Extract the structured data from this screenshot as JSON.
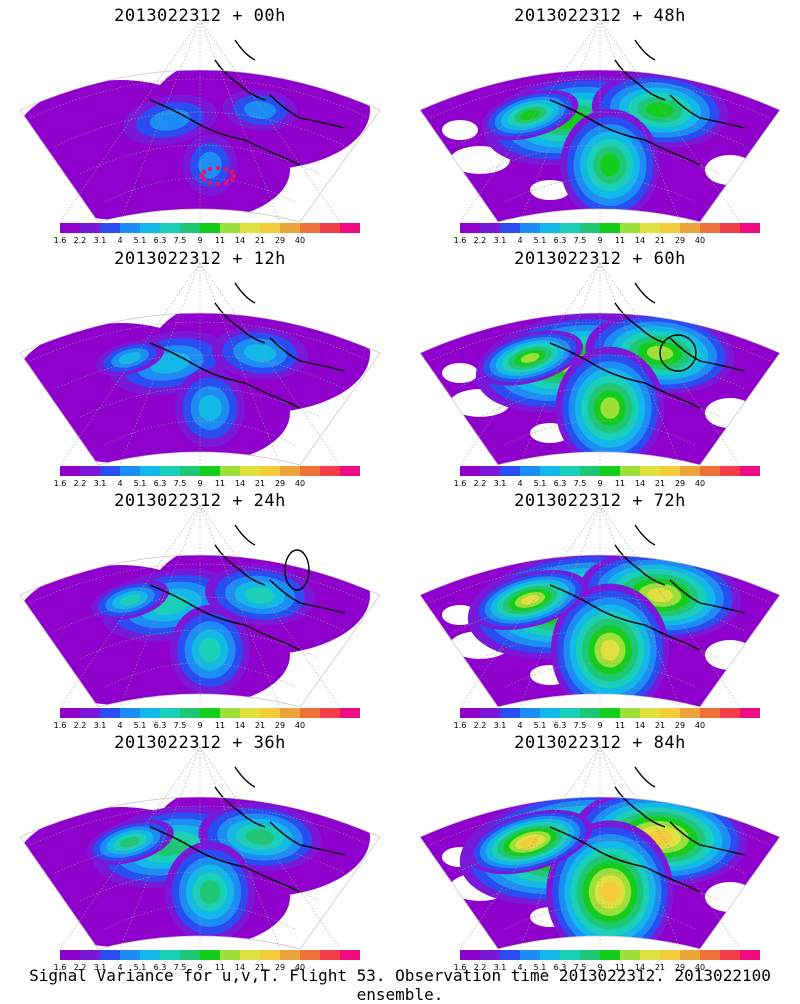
{
  "panels": [
    {
      "title": "2013022312 + 00h",
      "circle": "none",
      "target": true,
      "intensity": 0
    },
    {
      "title": "2013022312 + 48h",
      "circle": "none",
      "target": false,
      "intensity": 4
    },
    {
      "title": "2013022312 + 12h",
      "circle": "none",
      "target": false,
      "intensity": 1
    },
    {
      "title": "2013022312 + 60h",
      "circle": "east",
      "target": false,
      "intensity": 5
    },
    {
      "title": "2013022312 + 24h",
      "circle": "northeast",
      "target": false,
      "intensity": 2
    },
    {
      "title": "2013022312 + 72h",
      "circle": "none",
      "target": false,
      "intensity": 6
    },
    {
      "title": "2013022312 + 36h",
      "circle": "none",
      "target": false,
      "intensity": 3
    },
    {
      "title": "2013022312 + 84h",
      "circle": "none",
      "target": false,
      "intensity": 7
    }
  ],
  "colorbar": {
    "labels": [
      "1.6",
      "2.2",
      "3.1",
      "4",
      "5.1",
      "6.3",
      "7.5",
      "9",
      "11",
      "14",
      "21",
      "29",
      "40"
    ],
    "colors": [
      "#8f00cc",
      "#7a18d8",
      "#2a4cf0",
      "#1e8cf5",
      "#12b8e8",
      "#1ad0b8",
      "#1fc774",
      "#14cc1c",
      "#9ee03a",
      "#e0e040",
      "#f4cc3a",
      "#eda53a",
      "#f0703a",
      "#f2404a",
      "#f20c84"
    ]
  },
  "caption": "Signal Variance for u,v,T. Flight 53. Observation time 2013022312. 2013022100 ensemble.",
  "colors": {
    "white": "#ffffff",
    "coast": "#000000",
    "graticule": "#9a9a9a",
    "target": "#e8106a"
  }
}
